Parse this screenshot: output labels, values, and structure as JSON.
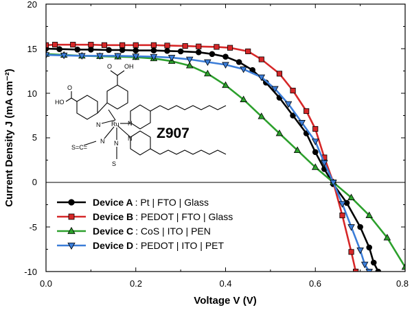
{
  "chart_data": {
    "type": "line",
    "xlabel": "Voltage V (V)",
    "ylabel": "Current Density J (mA cm⁻²)",
    "xlim": [
      0.0,
      0.8
    ],
    "ylim": [
      -10,
      20
    ],
    "xticks": [
      "0.0",
      "0.2",
      "0.4",
      "0.6",
      "0.8"
    ],
    "yticks": [
      "-10",
      "-5",
      "0",
      "5",
      "10",
      "15",
      "20"
    ],
    "zero_line": true,
    "grid": false,
    "legend_position": "bottom-left",
    "annotation": "Z907",
    "series": [
      {
        "name": "Device A",
        "description": ": Pt | FTO | Glass",
        "color": "#000000",
        "marker": "circle",
        "points": [
          [
            0.0,
            15.0
          ],
          [
            0.03,
            14.95
          ],
          [
            0.07,
            14.9
          ],
          [
            0.1,
            14.9
          ],
          [
            0.14,
            14.85
          ],
          [
            0.17,
            14.85
          ],
          [
            0.2,
            14.8
          ],
          [
            0.24,
            14.8
          ],
          [
            0.27,
            14.75
          ],
          [
            0.3,
            14.7
          ],
          [
            0.34,
            14.6
          ],
          [
            0.37,
            14.4
          ],
          [
            0.4,
            14.1
          ],
          [
            0.43,
            13.5
          ],
          [
            0.46,
            12.6
          ],
          [
            0.49,
            11.2
          ],
          [
            0.52,
            9.5
          ],
          [
            0.55,
            7.5
          ],
          [
            0.58,
            5.5
          ],
          [
            0.6,
            3.4
          ],
          [
            0.62,
            1.5
          ],
          [
            0.64,
            -0.2
          ],
          [
            0.67,
            -2.3
          ],
          [
            0.7,
            -5.0
          ],
          [
            0.72,
            -7.3
          ],
          [
            0.73,
            -9.0
          ],
          [
            0.74,
            -10.0
          ]
        ]
      },
      {
        "name": "Device B",
        "description": ": PEDOT | FTO | Glass",
        "color": "#d62728",
        "marker": "square",
        "points": [
          [
            0.0,
            15.4
          ],
          [
            0.02,
            15.45
          ],
          [
            0.06,
            15.45
          ],
          [
            0.1,
            15.45
          ],
          [
            0.13,
            15.4
          ],
          [
            0.17,
            15.4
          ],
          [
            0.2,
            15.4
          ],
          [
            0.24,
            15.4
          ],
          [
            0.27,
            15.35
          ],
          [
            0.31,
            15.3
          ],
          [
            0.34,
            15.25
          ],
          [
            0.38,
            15.2
          ],
          [
            0.41,
            15.1
          ],
          [
            0.45,
            14.7
          ],
          [
            0.48,
            13.8
          ],
          [
            0.52,
            12.2
          ],
          [
            0.55,
            10.3
          ],
          [
            0.58,
            8.0
          ],
          [
            0.6,
            6.0
          ],
          [
            0.62,
            2.8
          ],
          [
            0.64,
            0.0
          ],
          [
            0.66,
            -3.7
          ],
          [
            0.68,
            -7.8
          ],
          [
            0.69,
            -10.0
          ]
        ]
      },
      {
        "name": "Device C",
        "description": ": CoS | ITO | PEN",
        "color": "#2ca02c",
        "marker": "triangle-up",
        "points": [
          [
            0.0,
            14.4
          ],
          [
            0.04,
            14.3
          ],
          [
            0.08,
            14.2
          ],
          [
            0.12,
            14.15
          ],
          [
            0.16,
            14.1
          ],
          [
            0.2,
            14.05
          ],
          [
            0.24,
            13.9
          ],
          [
            0.28,
            13.6
          ],
          [
            0.32,
            13.1
          ],
          [
            0.36,
            12.2
          ],
          [
            0.4,
            10.9
          ],
          [
            0.44,
            9.3
          ],
          [
            0.48,
            7.4
          ],
          [
            0.52,
            5.5
          ],
          [
            0.56,
            3.6
          ],
          [
            0.6,
            1.7
          ],
          [
            0.64,
            0.0
          ],
          [
            0.68,
            -1.7
          ],
          [
            0.72,
            -3.7
          ],
          [
            0.76,
            -6.2
          ],
          [
            0.8,
            -9.5
          ]
        ]
      },
      {
        "name": "Device D",
        "description": ": PEDOT | ITO | PET",
        "color": "#3b7dd8",
        "marker": "triangle-down",
        "points": [
          [
            0.0,
            14.3
          ],
          [
            0.04,
            14.25
          ],
          [
            0.08,
            14.2
          ],
          [
            0.12,
            14.2
          ],
          [
            0.16,
            14.2
          ],
          [
            0.2,
            14.15
          ],
          [
            0.24,
            14.1
          ],
          [
            0.28,
            14.0
          ],
          [
            0.32,
            13.8
          ],
          [
            0.36,
            13.5
          ],
          [
            0.4,
            13.2
          ],
          [
            0.44,
            12.7
          ],
          [
            0.48,
            11.8
          ],
          [
            0.51,
            10.5
          ],
          [
            0.54,
            8.8
          ],
          [
            0.57,
            6.7
          ],
          [
            0.6,
            4.6
          ],
          [
            0.62,
            2.2
          ],
          [
            0.64,
            0.0
          ],
          [
            0.66,
            -2.4
          ],
          [
            0.68,
            -5.0
          ],
          [
            0.7,
            -7.6
          ],
          [
            0.71,
            -9.2
          ],
          [
            0.72,
            -10.0
          ]
        ]
      }
    ]
  }
}
